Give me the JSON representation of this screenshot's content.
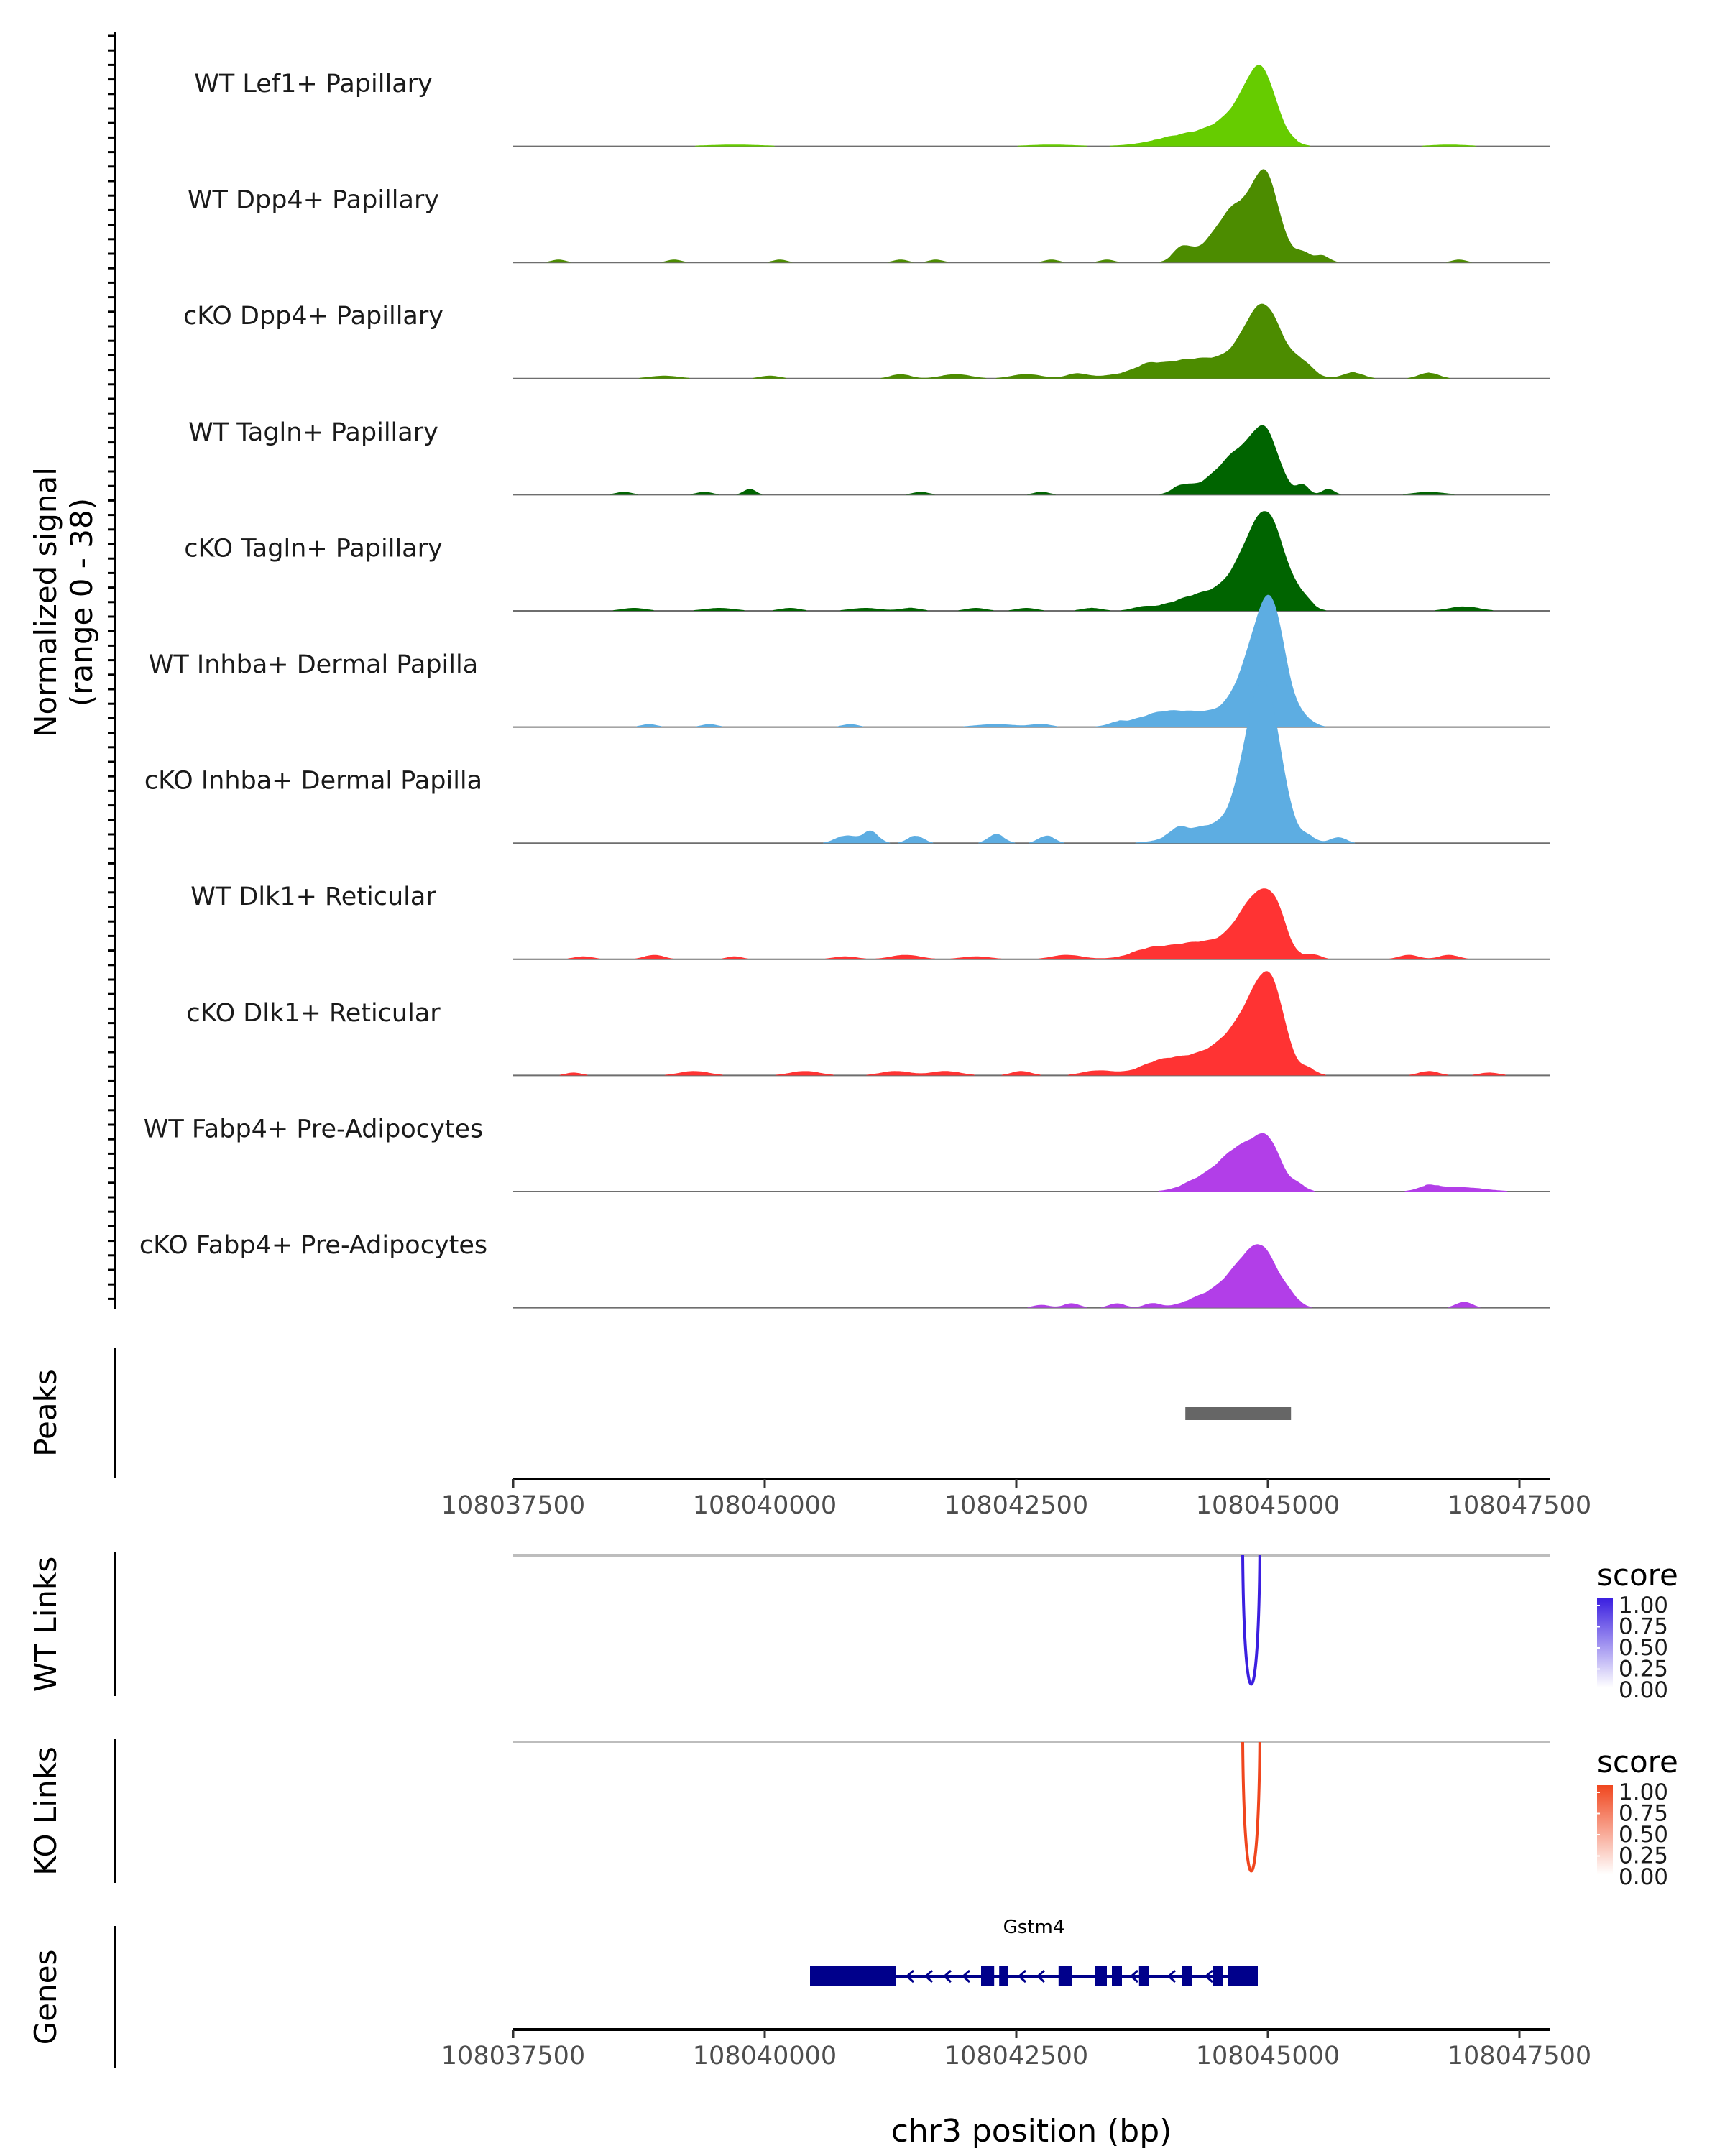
{
  "chart_data": {
    "type": "genome-browser",
    "xlabel": "chr3 position (bp)",
    "xlim": [
      108037500,
      108047800
    ],
    "x_ticks": [
      108037500,
      108040000,
      108042500,
      108045000,
      108047500
    ],
    "x_tick_labels": [
      "108037500",
      "108040000",
      "108042500",
      "108045000",
      "108047500"
    ],
    "coverage": {
      "ylabel_line1": "Normalized signal",
      "ylabel_line2": "(range 0 - 38)",
      "ylim": [
        0,
        38
      ],
      "tracks": [
        {
          "name": "WT Lef1+ Papillary",
          "color": "#66CC00",
          "peaks": [
            [
              108044300,
              350,
              4.5
            ],
            [
              108044700,
              200,
              7
            ],
            [
              108044870,
              150,
              12.5
            ],
            [
              108044960,
              120,
              10
            ],
            [
              108045080,
              140,
              4
            ],
            [
              108039700,
              300,
              0.6
            ],
            [
              108042850,
              250,
              0.6
            ],
            [
              108046800,
              200,
              0.6
            ]
          ]
        },
        {
          "name": "WT Dpp4+ Papillary",
          "color": "#4C8C00",
          "peaks": [
            [
              108044150,
              90,
              5
            ],
            [
              108044500,
              160,
              9
            ],
            [
              108044650,
              110,
              7
            ],
            [
              108044900,
              170,
              20
            ],
            [
              108045000,
              120,
              14
            ],
            [
              108045350,
              90,
              3
            ],
            [
              108045550,
              70,
              2
            ],
            [
              108037950,
              70,
              1
            ],
            [
              108039100,
              70,
              1
            ],
            [
              108040150,
              70,
              1
            ],
            [
              108041350,
              70,
              1
            ],
            [
              108041700,
              70,
              1
            ],
            [
              108042850,
              70,
              1
            ],
            [
              108043400,
              70,
              1
            ],
            [
              108046900,
              70,
              1
            ]
          ]
        },
        {
          "name": "cKO Dpp4+ Papillary",
          "color": "#4C8C00",
          "peaks": [
            [
              108044350,
              500,
              7
            ],
            [
              108044900,
              170,
              16
            ],
            [
              108045050,
              150,
              9
            ],
            [
              108045350,
              100,
              4
            ],
            [
              108045850,
              100,
              2
            ],
            [
              108046600,
              100,
              2
            ],
            [
              108039000,
              150,
              1
            ],
            [
              108040050,
              100,
              1
            ],
            [
              108041350,
              100,
              1.5
            ],
            [
              108041900,
              150,
              1.5
            ],
            [
              108042600,
              150,
              1.5
            ],
            [
              108043100,
              100,
              1.5
            ],
            [
              108043800,
              100,
              1.5
            ]
          ]
        },
        {
          "name": "WT Tagln+ Papillary",
          "color": "#006400",
          "peaks": [
            [
              108044150,
              100,
              3
            ],
            [
              108044480,
              150,
              6
            ],
            [
              108044650,
              110,
              5
            ],
            [
              108044880,
              170,
              16
            ],
            [
              108045000,
              120,
              10
            ],
            [
              108045350,
              60,
              3
            ],
            [
              108045600,
              60,
              2
            ],
            [
              108039850,
              60,
              2
            ],
            [
              108038600,
              80,
              1
            ],
            [
              108039400,
              80,
              1
            ],
            [
              108041550,
              80,
              1
            ],
            [
              108042750,
              80,
              1
            ],
            [
              108046600,
              150,
              1
            ]
          ]
        },
        {
          "name": "cKO Tagln+ Papillary",
          "color": "#006400",
          "peaks": [
            [
              108044400,
              300,
              6
            ],
            [
              108044900,
              200,
              23
            ],
            [
              108045050,
              150,
              14
            ],
            [
              108045350,
              90,
              3
            ],
            [
              108038700,
              120,
              1
            ],
            [
              108039550,
              150,
              1
            ],
            [
              108040250,
              100,
              1
            ],
            [
              108041000,
              150,
              1
            ],
            [
              108041450,
              100,
              1
            ],
            [
              108042100,
              100,
              1
            ],
            [
              108042600,
              100,
              1
            ],
            [
              108043250,
              100,
              1
            ],
            [
              108043750,
              100,
              1
            ],
            [
              108046950,
              150,
              1.5
            ]
          ]
        },
        {
          "name": "WT Inhba+ Dermal Papilla",
          "color": "#5DADE2",
          "peaks": [
            [
              108043900,
              200,
              2
            ],
            [
              108044300,
              400,
              5
            ],
            [
              108044850,
              180,
              15
            ],
            [
              108044980,
              150,
              20
            ],
            [
              108045080,
              120,
              18
            ],
            [
              108045350,
              100,
              2.5
            ],
            [
              108038850,
              80,
              1
            ],
            [
              108039450,
              80,
              1
            ],
            [
              108040850,
              80,
              1
            ],
            [
              108042300,
              200,
              1
            ],
            [
              108042750,
              100,
              1
            ],
            [
              108043500,
              80,
              1
            ]
          ]
        },
        {
          "name": "cKO Inhba+ Dermal Papilla",
          "color": "#5DADE2",
          "peaks": [
            [
              108040800,
              100,
              2.5
            ],
            [
              108041050,
              80,
              4
            ],
            [
              108041500,
              80,
              2.5
            ],
            [
              108042300,
              80,
              3
            ],
            [
              108042800,
              80,
              2.5
            ],
            [
              108044100,
              80,
              2.5
            ],
            [
              108044450,
              300,
              6
            ],
            [
              108044850,
              150,
              27
            ],
            [
              108044970,
              140,
              24
            ],
            [
              108045080,
              130,
              16
            ],
            [
              108045400,
              80,
              2
            ],
            [
              108045700,
              80,
              2
            ]
          ]
        },
        {
          "name": "WT Dlk1+ Reticular",
          "color": "#FF3333",
          "peaks": [
            [
              108044350,
              400,
              6
            ],
            [
              108044750,
              150,
              7
            ],
            [
              108044950,
              150,
              17
            ],
            [
              108045100,
              100,
              8
            ],
            [
              108045450,
              80,
              1.5
            ],
            [
              108038200,
              100,
              1
            ],
            [
              108038900,
              100,
              1.5
            ],
            [
              108039700,
              80,
              1
            ],
            [
              108040800,
              120,
              1
            ],
            [
              108041400,
              150,
              1.5
            ],
            [
              108042100,
              150,
              1
            ],
            [
              108043000,
              150,
              1.5
            ],
            [
              108043800,
              150,
              1.5
            ],
            [
              108046400,
              100,
              1.5
            ],
            [
              108046800,
              100,
              1.5
            ]
          ]
        },
        {
          "name": "cKO Dlk1+ Reticular",
          "color": "#FF3333",
          "peaks": [
            [
              108044350,
              400,
              7
            ],
            [
              108044750,
              200,
              11
            ],
            [
              108044950,
              150,
              19
            ],
            [
              108045080,
              120,
              14
            ],
            [
              108045400,
              80,
              2
            ],
            [
              108038100,
              80,
              1
            ],
            [
              108039300,
              150,
              1.5
            ],
            [
              108040400,
              150,
              1.5
            ],
            [
              108041300,
              150,
              1.5
            ],
            [
              108041800,
              150,
              1.5
            ],
            [
              108042550,
              100,
              1.5
            ],
            [
              108043300,
              150,
              1.5
            ],
            [
              108043900,
              150,
              1.5
            ],
            [
              108046600,
              100,
              1.5
            ],
            [
              108047200,
              100,
              1
            ]
          ]
        },
        {
          "name": "WT Fabp4+ Pre-Adipocytes",
          "color": "#B23EE8",
          "peaks": [
            [
              108044400,
              200,
              5
            ],
            [
              108044650,
              150,
              8
            ],
            [
              108044880,
              160,
              12
            ],
            [
              108045030,
              120,
              10
            ],
            [
              108045300,
              80,
              2
            ],
            [
              108046600,
              100,
              1.5
            ],
            [
              108046900,
              250,
              1.5
            ]
          ]
        },
        {
          "name": "cKO Fabp4+ Pre-Adipocytes",
          "color": "#B23EE8",
          "peaks": [
            [
              108044400,
              200,
              4
            ],
            [
              108044650,
              150,
              6
            ],
            [
              108044850,
              150,
              14
            ],
            [
              108045000,
              120,
              10
            ],
            [
              108045200,
              100,
              4
            ],
            [
              108043050,
              80,
              1.5
            ],
            [
              108043500,
              80,
              1.5
            ],
            [
              108043850,
              80,
              1.5
            ],
            [
              108046950,
              80,
              2
            ],
            [
              108042750,
              80,
              1
            ]
          ]
        }
      ]
    },
    "peaks_track": {
      "label": "Peaks",
      "regions": [
        [
          108044180,
          108045230
        ]
      ]
    },
    "links": [
      {
        "label": "WT Links",
        "color": "#3B1FE0",
        "start": 108044750,
        "end": 108044920,
        "score": 1.0,
        "legend_title": "score",
        "legend_ticks": [
          "1.00",
          "0.75",
          "0.50",
          "0.25",
          "0.00"
        ]
      },
      {
        "label": "KO Links",
        "color": "#F0461E",
        "start": 108044750,
        "end": 108044920,
        "score": 1.0,
        "legend_title": "score",
        "legend_ticks": [
          "1.00",
          "0.75",
          "0.50",
          "0.25",
          "0.00"
        ]
      }
    ],
    "genes": {
      "label": "Genes",
      "color": "#00008B",
      "gene": {
        "name": "Gstm4",
        "strand": "-",
        "start": 108040450,
        "end": 108044900,
        "exons": [
          [
            108040450,
            108041300
          ],
          [
            108042150,
            108042280
          ],
          [
            108042330,
            108042420
          ],
          [
            108042920,
            108043050
          ],
          [
            108043280,
            108043400
          ],
          [
            108043450,
            108043550
          ],
          [
            108043720,
            108043820
          ],
          [
            108044150,
            108044250
          ],
          [
            108044450,
            108044550
          ],
          [
            108044600,
            108044900
          ]
        ]
      }
    }
  }
}
